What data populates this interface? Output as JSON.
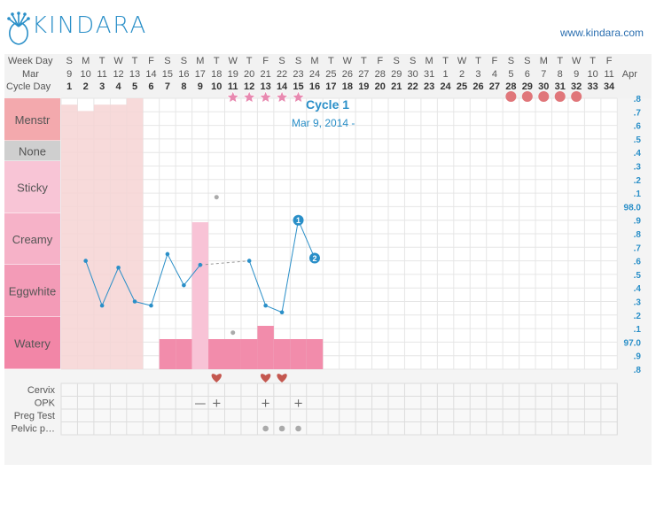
{
  "brand": {
    "name": "KINDARA",
    "website": "www.kindara.com"
  },
  "header_rows": {
    "weekday_label": "Week Day",
    "month_label": "Mar",
    "month_end_label": "Apr",
    "cycle_day_label": "Cycle Day",
    "weekdays": [
      "S",
      "M",
      "T",
      "W",
      "T",
      "F",
      "S",
      "S",
      "M",
      "T",
      "W",
      "T",
      "F",
      "S",
      "S",
      "M",
      "T",
      "W",
      "T",
      "F",
      "S",
      "S",
      "M",
      "T",
      "W",
      "T",
      "F",
      "S",
      "S",
      "M",
      "T",
      "W",
      "T",
      "F"
    ],
    "dates": [
      "9",
      "10",
      "11",
      "12",
      "13",
      "14",
      "15",
      "16",
      "17",
      "18",
      "19",
      "20",
      "21",
      "22",
      "23",
      "24",
      "25",
      "26",
      "27",
      "28",
      "29",
      "30",
      "31",
      "1",
      "2",
      "3",
      "4",
      "5",
      "6",
      "7",
      "8",
      "9",
      "10",
      "11"
    ],
    "cycle_days": [
      "1",
      "2",
      "3",
      "4",
      "5",
      "6",
      "7",
      "8",
      "9",
      "10",
      "11",
      "12",
      "13",
      "14",
      "15",
      "16",
      "17",
      "18",
      "19",
      "20",
      "21",
      "22",
      "23",
      "24",
      "25",
      "26",
      "27",
      "28",
      "29",
      "30",
      "31",
      "32",
      "33",
      "34"
    ]
  },
  "fluid_labels": [
    "Menstr",
    "None",
    "Sticky",
    "Creamy",
    "Eggwhite",
    "Watery"
  ],
  "cycle_info": {
    "title": "Cycle 1",
    "date_range": "Mar 9, 2014 -"
  },
  "temp_axis_ticks": [
    ".8",
    ".7",
    ".6",
    ".5",
    ".4",
    ".3",
    ".2",
    ".1",
    "98.0",
    ".9",
    ".8",
    ".7",
    ".6",
    ".5",
    ".4",
    ".3",
    ".2",
    ".1",
    "97.0",
    ".9",
    ".8"
  ],
  "bottom_rows": [
    "Cervix",
    "OPK",
    "Preg Test",
    "Pelvic p…"
  ],
  "colors": {
    "accent": "#2a8fc8",
    "menstr": "#f6d3d3",
    "fluid": "#f28cab",
    "heart": "#c4574f",
    "star": "#e889b0"
  },
  "chart_data": {
    "type": "line",
    "x": [
      1,
      2,
      3,
      4,
      5,
      6,
      7,
      8,
      9,
      10,
      11,
      12,
      13,
      14,
      15,
      16
    ],
    "temperature_series": [
      {
        "cycle_day": 2,
        "value": 97.6
      },
      {
        "cycle_day": 3,
        "value": 97.27
      },
      {
        "cycle_day": 4,
        "value": 97.55
      },
      {
        "cycle_day": 5,
        "value": 97.3
      },
      {
        "cycle_day": 6,
        "value": 97.27
      },
      {
        "cycle_day": 7,
        "value": 97.65
      },
      {
        "cycle_day": 8,
        "value": 97.42
      },
      {
        "cycle_day": 9,
        "value": 97.57
      },
      {
        "cycle_day": 12,
        "value": 97.6
      },
      {
        "cycle_day": 13,
        "value": 97.27
      },
      {
        "cycle_day": 14,
        "value": 97.22
      },
      {
        "cycle_day": 15,
        "value": 97.9
      },
      {
        "cycle_day": 16,
        "value": 97.62
      }
    ],
    "dashed_segment": [
      9,
      12
    ],
    "outlier_points": [
      {
        "cycle_day": 10,
        "value": 98.07
      },
      {
        "cycle_day": 11,
        "value": 97.07
      }
    ],
    "numbered_markers": [
      {
        "label": "1",
        "cycle_day": 15,
        "value": 97.9
      },
      {
        "label": "2",
        "cycle_day": 16,
        "value": 97.62
      }
    ],
    "temp_range": [
      96.8,
      98.8
    ],
    "menstruation": [
      {
        "cycle_day": 1,
        "level": 0.8
      },
      {
        "cycle_day": 2,
        "level": 0.6
      },
      {
        "cycle_day": 3,
        "level": 0.8
      },
      {
        "cycle_day": 4,
        "level": 0.8
      },
      {
        "cycle_day": 5,
        "level": 1.0
      }
    ],
    "fluid": [
      {
        "cycle_day": 7,
        "category": "Watery",
        "strength": 0.5
      },
      {
        "cycle_day": 8,
        "category": "Watery",
        "strength": 0.5
      },
      {
        "cycle_day": 9,
        "category": "Creamy",
        "strength": 0.0
      },
      {
        "cycle_day": 10,
        "category": "Watery",
        "strength": 0.5
      },
      {
        "cycle_day": 11,
        "category": "Watery",
        "strength": 0.5
      },
      {
        "cycle_day": 12,
        "category": "Watery",
        "strength": 0.5
      },
      {
        "cycle_day": 13,
        "category": "Watery",
        "strength": 0.75
      },
      {
        "cycle_day": 14,
        "category": "Watery",
        "strength": 0.5
      },
      {
        "cycle_day": 15,
        "category": "Watery",
        "strength": 0.5
      },
      {
        "cycle_day": 16,
        "category": "Watery",
        "strength": 0.5
      }
    ],
    "stars": [
      11,
      12,
      13,
      14,
      15
    ],
    "future_circles": [
      28,
      29,
      30,
      31,
      32
    ],
    "hearts": [
      10,
      13,
      14
    ],
    "opk": [
      {
        "cycle_day": 9,
        "result": "—"
      },
      {
        "cycle_day": 10,
        "result": "+"
      },
      {
        "cycle_day": 13,
        "result": "+"
      },
      {
        "cycle_day": 15,
        "result": "+"
      }
    ],
    "pelvic_pain": [
      13,
      14,
      15
    ]
  }
}
